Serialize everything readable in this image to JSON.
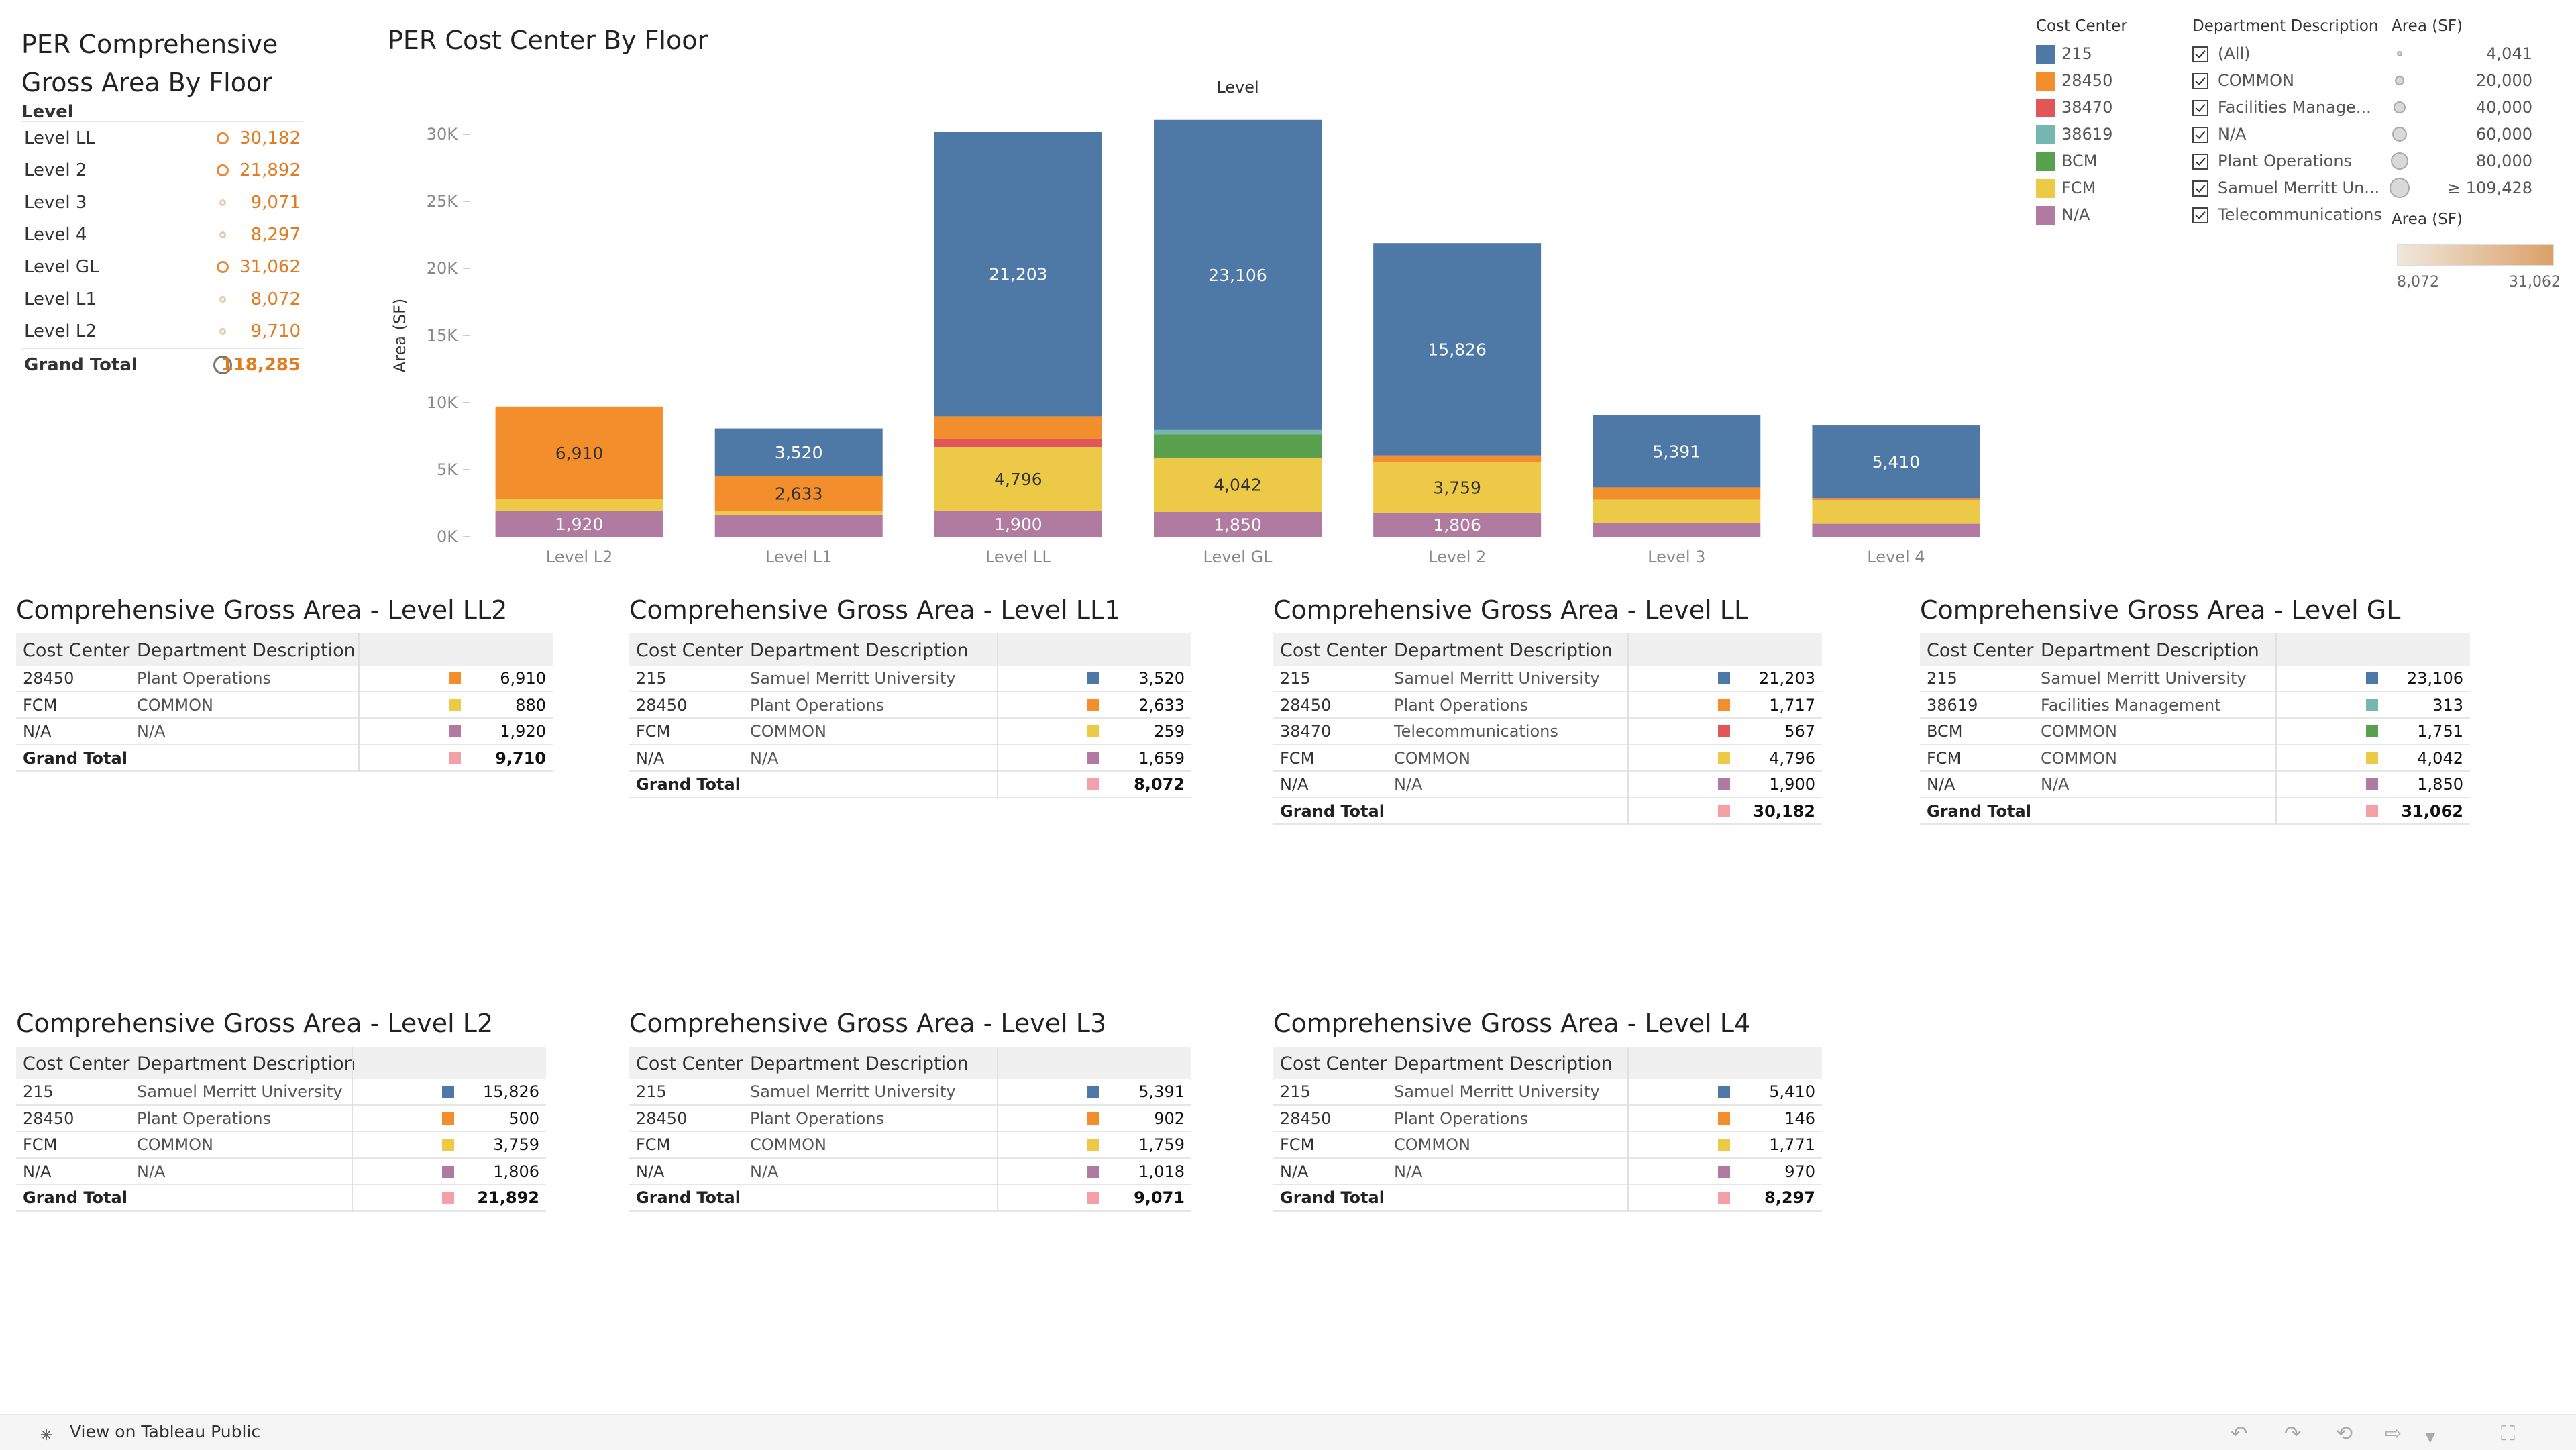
{
  "summary": {
    "title_line1": "PER Comprehensive",
    "title_line2": "Gross Area By Floor",
    "column_header": "Level",
    "rows": [
      {
        "label": "Level LL",
        "value": "30,182",
        "n": 30182
      },
      {
        "label": "Level 2",
        "value": "21,892",
        "n": 21892
      },
      {
        "label": "Level 3",
        "value": "9,071",
        "n": 9071
      },
      {
        "label": "Level 4",
        "value": "8,297",
        "n": 8297
      },
      {
        "label": "Level GL",
        "value": "31,062",
        "n": 31062
      },
      {
        "label": "Level L1",
        "value": "8,072",
        "n": 8072
      },
      {
        "label": "Level L2",
        "value": "9,710",
        "n": 9710
      }
    ],
    "total": {
      "label": "Grand Total",
      "value": "118,285",
      "n": 118285
    }
  },
  "chart_data": {
    "type": "bar",
    "stacked": true,
    "title": "PER Cost Center By Floor",
    "header": "Level",
    "ylabel": "Area (SF)",
    "ylim": [
      0,
      30000
    ],
    "yticks": [
      {
        "v": 0,
        "label": "0K"
      },
      {
        "v": 5000,
        "label": "5K"
      },
      {
        "v": 10000,
        "label": "10K"
      },
      {
        "v": 15000,
        "label": "15K"
      },
      {
        "v": 20000,
        "label": "20K"
      },
      {
        "v": 25000,
        "label": "25K"
      },
      {
        "v": 30000,
        "label": "30K"
      }
    ],
    "categories": [
      "Level L2",
      "Level L1",
      "Level LL",
      "Level GL",
      "Level 2",
      "Level 3",
      "Level 4"
    ],
    "series": [
      {
        "name": "N/A",
        "color": "#b07aa1",
        "values": [
          1920,
          1659,
          1900,
          1850,
          1806,
          1018,
          970
        ],
        "labels": [
          "1,920",
          "",
          "1,900",
          "1,850",
          "1,806",
          "",
          ""
        ]
      },
      {
        "name": "FCM",
        "color": "#edc948",
        "values": [
          880,
          259,
          4796,
          4042,
          3759,
          1759,
          1771
        ],
        "labels": [
          "",
          "",
          "4,796",
          "4,042",
          "3,759",
          "",
          ""
        ]
      },
      {
        "name": "BCM",
        "color": "#59a14f",
        "values": [
          0,
          0,
          0,
          1751,
          0,
          0,
          0
        ],
        "labels": [
          "",
          "",
          "",
          "",
          "",
          "",
          ""
        ]
      },
      {
        "name": "38619",
        "color": "#76b7b2",
        "values": [
          0,
          0,
          0,
          313,
          0,
          0,
          0
        ],
        "labels": [
          "",
          "",
          "",
          "",
          "",
          "",
          ""
        ]
      },
      {
        "name": "38470",
        "color": "#e15759",
        "values": [
          0,
          0,
          567,
          0,
          0,
          0,
          0
        ],
        "labels": [
          "",
          "",
          "",
          "",
          "",
          "",
          ""
        ]
      },
      {
        "name": "28450",
        "color": "#f28e2b",
        "values": [
          6910,
          2633,
          1717,
          0,
          500,
          902,
          146
        ],
        "labels": [
          "6,910",
          "2,633",
          "",
          "",
          "",
          "",
          ""
        ]
      },
      {
        "name": "215",
        "color": "#4e79a7",
        "values": [
          0,
          3520,
          21203,
          23106,
          15826,
          5391,
          5410
        ],
        "labels": [
          "",
          "3,520",
          "21,203",
          "23,106",
          "15,826",
          "5,391",
          "5,410"
        ]
      }
    ]
  },
  "legend_cost_center": {
    "title": "Cost Center",
    "items": [
      {
        "label": "215",
        "color": "#4e79a7"
      },
      {
        "label": "28450",
        "color": "#f28e2b"
      },
      {
        "label": "38470",
        "color": "#e15759"
      },
      {
        "label": "38619",
        "color": "#76b7b2"
      },
      {
        "label": "BCM",
        "color": "#59a14f"
      },
      {
        "label": "FCM",
        "color": "#edc948"
      },
      {
        "label": "N/A",
        "color": "#b07aa1"
      }
    ]
  },
  "legend_department": {
    "title": "Department Description",
    "items": [
      "(All)",
      "COMMON",
      "Facilities Manage...",
      "N/A",
      "Plant Operations",
      "Samuel Merritt Un...",
      "Telecommunications"
    ]
  },
  "legend_size": {
    "title": "Area (SF)",
    "items": [
      {
        "label": "4,041",
        "size": 8
      },
      {
        "label": "20,000",
        "size": 14
      },
      {
        "label": "40,000",
        "size": 18
      },
      {
        "label": "60,000",
        "size": 22
      },
      {
        "label": "80,000",
        "size": 26
      },
      {
        "label": "≥ 109,428",
        "size": 30
      }
    ],
    "color_title": "Area (SF)",
    "color_min": "8,072",
    "color_max": "31,062"
  },
  "tables": [
    {
      "title": "Comprehensive Gross Area - Level LL2",
      "col1": "Cost Center",
      "col2": "Department Description",
      "rows": [
        {
          "cc": "28450",
          "dept": "Plant Operations",
          "color": "#f28e2b",
          "value": "6,910"
        },
        {
          "cc": "FCM",
          "dept": "COMMON",
          "color": "#edc948",
          "value": "880"
        },
        {
          "cc": "N/A",
          "dept": "N/A",
          "color": "#b07aa1",
          "value": "1,920"
        }
      ],
      "total_label": "Grand Total",
      "total_color": "#f4a0a8",
      "total": "9,710"
    },
    {
      "title": "Comprehensive Gross Area - Level LL1",
      "col1": "Cost Center",
      "col2": "Department Description",
      "rows": [
        {
          "cc": "215",
          "dept": "Samuel Merritt University",
          "color": "#4e79a7",
          "value": "3,520"
        },
        {
          "cc": "28450",
          "dept": "Plant Operations",
          "color": "#f28e2b",
          "value": "2,633"
        },
        {
          "cc": "FCM",
          "dept": "COMMON",
          "color": "#edc948",
          "value": "259"
        },
        {
          "cc": "N/A",
          "dept": "N/A",
          "color": "#b07aa1",
          "value": "1,659"
        }
      ],
      "total_label": "Grand Total",
      "total_color": "#f4a0a8",
      "total": "8,072"
    },
    {
      "title": "Comprehensive Gross Area - Level LL",
      "col1": "Cost Center",
      "col2": "Department Description",
      "rows": [
        {
          "cc": "215",
          "dept": "Samuel Merritt University",
          "color": "#4e79a7",
          "value": "21,203"
        },
        {
          "cc": "28450",
          "dept": "Plant Operations",
          "color": "#f28e2b",
          "value": "1,717"
        },
        {
          "cc": "38470",
          "dept": "Telecommunications",
          "color": "#e15759",
          "value": "567"
        },
        {
          "cc": "FCM",
          "dept": "COMMON",
          "color": "#edc948",
          "value": "4,796"
        },
        {
          "cc": "N/A",
          "dept": "N/A",
          "color": "#b07aa1",
          "value": "1,900"
        }
      ],
      "total_label": "Grand Total",
      "total_color": "#f4a0a8",
      "total": "30,182"
    },
    {
      "title": "Comprehensive Gross Area - Level GL",
      "col1": "Cost Center",
      "col2": "Department Description",
      "rows": [
        {
          "cc": "215",
          "dept": "Samuel Merritt University",
          "color": "#4e79a7",
          "value": "23,106"
        },
        {
          "cc": "38619",
          "dept": "Facilities Management",
          "color": "#76b7b2",
          "value": "313"
        },
        {
          "cc": "BCM",
          "dept": "COMMON",
          "color": "#59a14f",
          "value": "1,751"
        },
        {
          "cc": "FCM",
          "dept": "COMMON",
          "color": "#edc948",
          "value": "4,042"
        },
        {
          "cc": "N/A",
          "dept": "N/A",
          "color": "#b07aa1",
          "value": "1,850"
        }
      ],
      "total_label": "Grand Total",
      "total_color": "#f4a0a8",
      "total": "31,062"
    },
    {
      "title": "Comprehensive Gross Area - Level L2",
      "col1": "Cost Center",
      "col2": "Department Description",
      "rows": [
        {
          "cc": "215",
          "dept": "Samuel Merritt University",
          "color": "#4e79a7",
          "value": "15,826"
        },
        {
          "cc": "28450",
          "dept": "Plant Operations",
          "color": "#f28e2b",
          "value": "500"
        },
        {
          "cc": "FCM",
          "dept": "COMMON",
          "color": "#edc948",
          "value": "3,759"
        },
        {
          "cc": "N/A",
          "dept": "N/A",
          "color": "#b07aa1",
          "value": "1,806"
        }
      ],
      "total_label": "Grand Total",
      "total_color": "#f4a0a8",
      "total": "21,892"
    },
    {
      "title": "Comprehensive Gross Area - Level L3",
      "col1": "Cost Center",
      "col2": "Department Description",
      "rows": [
        {
          "cc": "215",
          "dept": "Samuel Merritt University",
          "color": "#4e79a7",
          "value": "5,391"
        },
        {
          "cc": "28450",
          "dept": "Plant Operations",
          "color": "#f28e2b",
          "value": "902"
        },
        {
          "cc": "FCM",
          "dept": "COMMON",
          "color": "#edc948",
          "value": "1,759"
        },
        {
          "cc": "N/A",
          "dept": "N/A",
          "color": "#b07aa1",
          "value": "1,018"
        }
      ],
      "total_label": "Grand Total",
      "total_color": "#f4a0a8",
      "total": "9,071"
    },
    {
      "title": "Comprehensive Gross Area - Level L4",
      "col1": "Cost Center",
      "col2": "Department Description",
      "rows": [
        {
          "cc": "215",
          "dept": "Samuel Merritt University",
          "color": "#4e79a7",
          "value": "5,410"
        },
        {
          "cc": "28450",
          "dept": "Plant Operations",
          "color": "#f28e2b",
          "value": "146"
        },
        {
          "cc": "FCM",
          "dept": "COMMON",
          "color": "#edc948",
          "value": "1,771"
        },
        {
          "cc": "N/A",
          "dept": "N/A",
          "color": "#b07aa1",
          "value": "970"
        }
      ],
      "total_label": "Grand Total",
      "total_color": "#f4a0a8",
      "total": "8,297"
    }
  ],
  "footer": {
    "link_label": "View on Tableau Public",
    "tools": [
      "undo-icon",
      "redo-icon",
      "revert-icon",
      "share-icon",
      "fullscreen-icon"
    ]
  }
}
